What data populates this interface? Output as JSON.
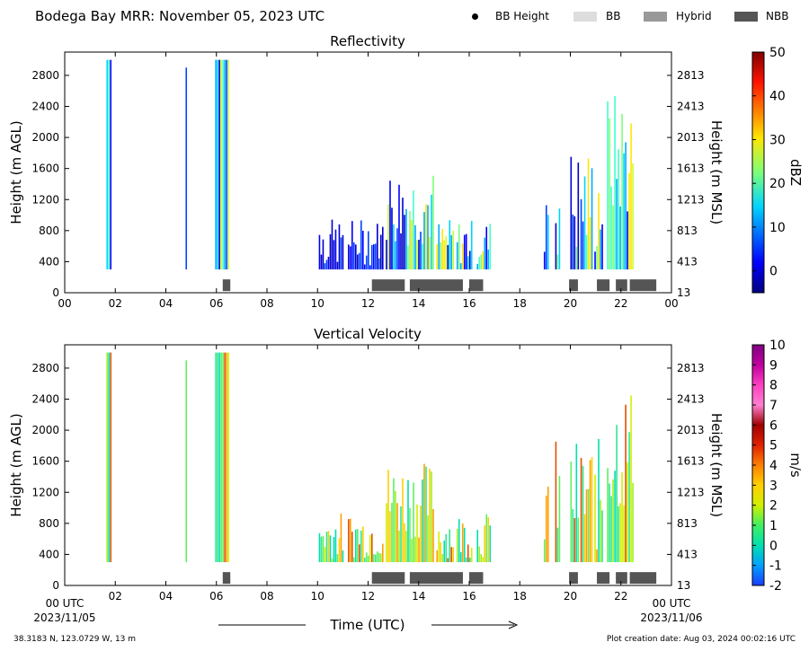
{
  "header": {
    "title": "Bodega Bay MRR:  November 05, 2023 UTC",
    "legend": [
      {
        "label": "BB Height",
        "kind": "dot",
        "color": "#000000"
      },
      {
        "label": "BB",
        "kind": "box",
        "color": "#dddddd"
      },
      {
        "label": "Hybrid",
        "kind": "box",
        "color": "#999999"
      },
      {
        "label": "NBB",
        "kind": "box",
        "color": "#555555"
      }
    ]
  },
  "footer": {
    "location": "38.3183 N, 123.0729 W, 13 m",
    "created": "Plot creation date: Aug 03, 2024 00:02:16 UTC",
    "xlabel": "Time (UTC)",
    "start_time": "00 UTC",
    "start_date": "2023/11/05",
    "end_time": "00 UTC",
    "end_date": "2023/11/06"
  },
  "chart_data": [
    {
      "type": "heatmap",
      "title": "Reflectivity",
      "ylabel": "Height (m AGL)",
      "ylabel_right": "Height (m MSL)",
      "xlim": [
        0,
        24
      ],
      "ylim": [
        0,
        3100
      ],
      "x_ticks": [
        "00",
        "02",
        "04",
        "06",
        "08",
        "10",
        "12",
        "14",
        "16",
        "18",
        "20",
        "22",
        "00"
      ],
      "y_ticks": [
        "0",
        "400",
        "800",
        "1200",
        "1600",
        "2000",
        "2400",
        "2800"
      ],
      "y_ticks_right": [
        "13",
        "413",
        "813",
        "1213",
        "1613",
        "2013",
        "2413",
        "2813"
      ],
      "colorbar": {
        "label": "dBZ",
        "min": -5,
        "max": 50,
        "ticks": [
          "0",
          "10",
          "20",
          "30",
          "40",
          "50"
        ],
        "tick_values": [
          0,
          10,
          20,
          30,
          40,
          50
        ]
      },
      "echo_segments_hours": [
        [
          1.65,
          1.8
        ],
        [
          4.78,
          4.85
        ],
        [
          5.95,
          6.45
        ],
        [
          10.05,
          11.0
        ],
        [
          11.2,
          12.6
        ],
        [
          12.7,
          14.6
        ],
        [
          14.7,
          15.4
        ],
        [
          15.5,
          16.1
        ],
        [
          16.3,
          16.85
        ],
        [
          18.95,
          19.1
        ],
        [
          19.4,
          19.55
        ],
        [
          20.0,
          20.3
        ],
        [
          20.4,
          20.85
        ],
        [
          20.95,
          21.3
        ],
        [
          21.45,
          22.5
        ]
      ],
      "bright_band_nbb_hours": [
        [
          6.25,
          6.55
        ],
        [
          12.15,
          13.45
        ],
        [
          13.65,
          15.75
        ],
        [
          16.0,
          16.55
        ],
        [
          19.95,
          20.3
        ],
        [
          21.05,
          21.55
        ],
        [
          21.8,
          22.25
        ],
        [
          22.35,
          23.4
        ]
      ]
    },
    {
      "type": "heatmap",
      "title": "Vertical Velocity",
      "ylabel": "Height (m AGL)",
      "ylabel_right": "Height (m MSL)",
      "xlim": [
        0,
        24
      ],
      "ylim": [
        0,
        3100
      ],
      "x_ticks": [
        "",
        "02",
        "04",
        "06",
        "08",
        "10",
        "12",
        "14",
        "16",
        "18",
        "20",
        "22",
        ""
      ],
      "y_ticks": [
        "0",
        "400",
        "800",
        "1200",
        "1600",
        "2000",
        "2400",
        "2800"
      ],
      "y_ticks_right": [
        "13",
        "413",
        "813",
        "1213",
        "1613",
        "2013",
        "2413",
        "2813"
      ],
      "colorbar": {
        "label": "m/s",
        "min": -2,
        "max": 10,
        "ticks": [
          "-2",
          "-1",
          "0",
          "1",
          "2",
          "3",
          "4",
          "5",
          "6",
          "7",
          "8",
          "9",
          "10"
        ],
        "tick_values": [
          -2,
          -1,
          0,
          1,
          2,
          3,
          4,
          5,
          6,
          7,
          8,
          9,
          10
        ]
      },
      "echo_segments_hours": [
        [
          1.65,
          1.8
        ],
        [
          4.78,
          4.85
        ],
        [
          5.95,
          6.45
        ],
        [
          10.05,
          11.0
        ],
        [
          11.2,
          12.6
        ],
        [
          12.7,
          14.6
        ],
        [
          14.7,
          15.4
        ],
        [
          15.5,
          16.1
        ],
        [
          16.3,
          16.85
        ],
        [
          18.95,
          19.1
        ],
        [
          19.4,
          19.55
        ],
        [
          20.0,
          20.3
        ],
        [
          20.4,
          20.85
        ],
        [
          20.95,
          21.3
        ],
        [
          21.45,
          22.5
        ]
      ],
      "bright_band_nbb_hours": [
        [
          6.25,
          6.55
        ],
        [
          12.15,
          13.45
        ],
        [
          13.65,
          15.75
        ],
        [
          16.0,
          16.55
        ],
        [
          19.95,
          20.3
        ],
        [
          21.05,
          21.55
        ],
        [
          21.8,
          22.25
        ],
        [
          22.35,
          23.4
        ]
      ]
    }
  ]
}
